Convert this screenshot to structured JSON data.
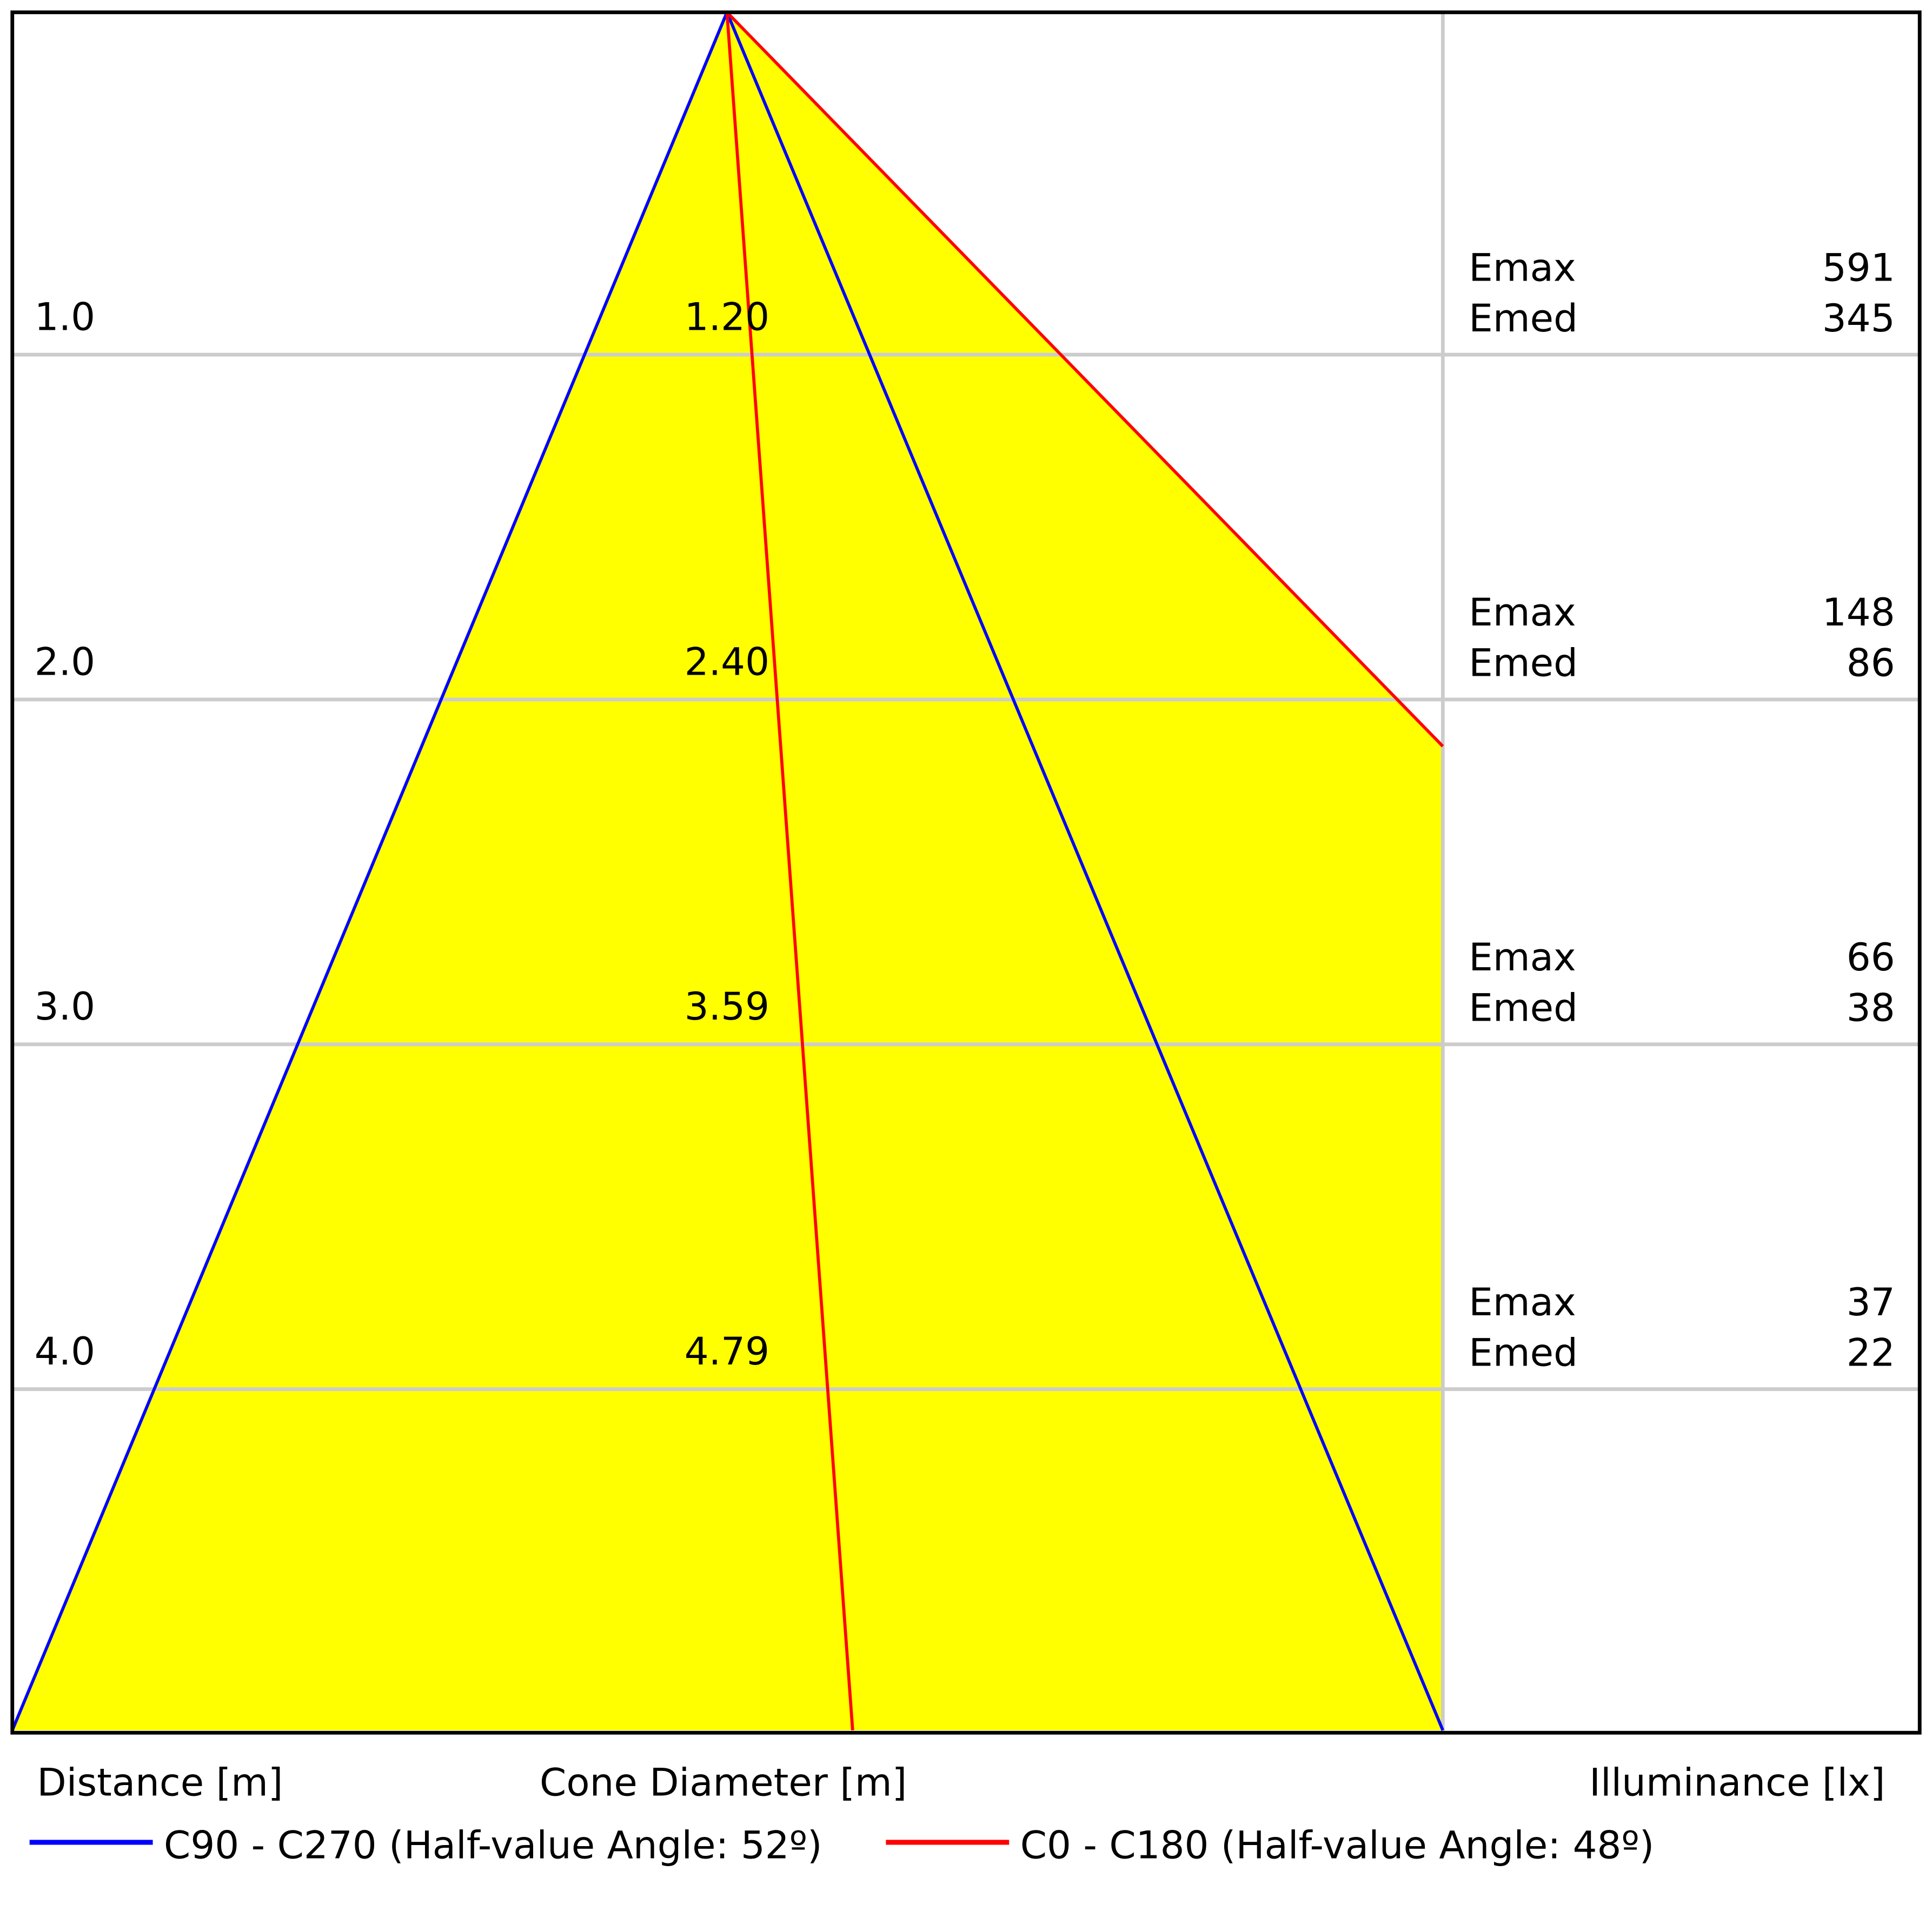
{
  "chart_data": {
    "type": "area",
    "distance_label": "Distance [m]",
    "cone_label": "Cone Diameter [m]",
    "illuminance_label": "Illuminance [lx]",
    "rows": [
      {
        "distance": "1.0",
        "cone_diameter": "1.20",
        "emax_label": "Emax",
        "emax": "591",
        "emed_label": "Emed",
        "emed": "345"
      },
      {
        "distance": "2.0",
        "cone_diameter": "2.40",
        "emax_label": "Emax",
        "emax": "148",
        "emed_label": "Emed",
        "emed": "86"
      },
      {
        "distance": "3.0",
        "cone_diameter": "3.59",
        "emax_label": "Emax",
        "emax": "66",
        "emed_label": "Emed",
        "emed": "38"
      },
      {
        "distance": "4.0",
        "cone_diameter": "4.79",
        "emax_label": "Emax",
        "emax": "37",
        "emed_label": "Emed",
        "emed": "22"
      }
    ],
    "series": [
      {
        "name": "C90 - C270 (Half-value Angle: 52º)",
        "half_angle_deg": 52,
        "color": "#0000ff"
      },
      {
        "name": "C0 - C180 (Half-value Angle: 48º)",
        "half_angle_deg": 48,
        "color": "#ff0000"
      }
    ],
    "fill_color": "#ffff00",
    "grid": true
  }
}
